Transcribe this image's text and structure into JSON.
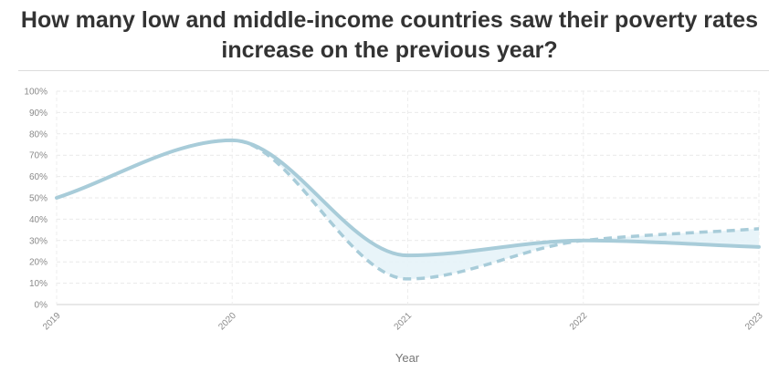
{
  "header": {
    "title": "How many low and middle-income countries saw their poverty rates increase on the previous year?"
  },
  "chart_data": {
    "type": "line",
    "title": "How many low and middle-income countries saw their poverty rates increase on the previous year?",
    "xlabel": "Year",
    "ylabel": "",
    "x": [
      "2019",
      "2020",
      "2021",
      "2022",
      "2023"
    ],
    "y_ticks": [
      "0%",
      "10%",
      "20%",
      "30%",
      "40%",
      "50%",
      "60%",
      "70%",
      "80%",
      "90%",
      "100%"
    ],
    "ylim": [
      0,
      100
    ],
    "grid": true,
    "series": [
      {
        "style": "solid",
        "color": "#a8ccd9",
        "values": [
          50,
          77,
          23,
          30,
          27
        ]
      },
      {
        "style": "dashed",
        "color": "#a8ccd9",
        "values": [
          50,
          77,
          12,
          30,
          35.5
        ]
      }
    ],
    "band_fill": "#e6f3f8"
  }
}
